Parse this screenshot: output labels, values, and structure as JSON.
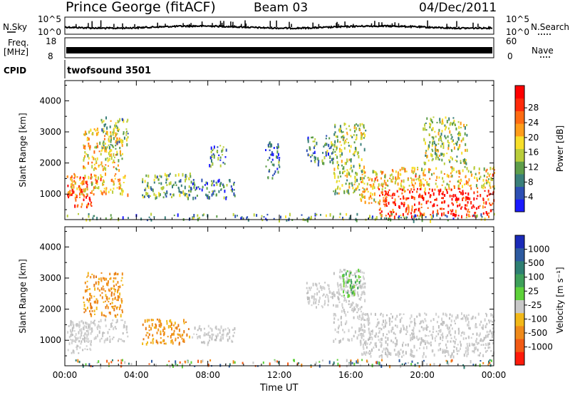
{
  "header": {
    "station": "Prince George (fitACF)",
    "beam": "Beam 03",
    "date": "04/Dec/2011"
  },
  "noise_panel": {
    "left_label": "N.Sky",
    "right_label": "N.Search",
    "left_ticks": [
      "10^5",
      "10^0"
    ],
    "right_ticks": [
      "10^5",
      "10^0"
    ]
  },
  "freq_panel": {
    "left_label_line1": "Freq.",
    "left_label_line2": "[MHz]",
    "right_label": "Nave",
    "left_ticks": [
      "18",
      "8"
    ],
    "right_ticks": [
      "60",
      "0"
    ]
  },
  "cpid_panel": {
    "label": "CPID",
    "value": "twofsound 3501"
  },
  "chart_data": [
    {
      "type": "heatmap",
      "parameter": "power",
      "xlabel": "",
      "ylabel": "Slant Range [km]",
      "x_range_hours_ut": [
        0,
        24
      ],
      "ylim": [
        180,
        4650
      ],
      "y_ticks": [
        1000,
        2000,
        3000,
        4000
      ],
      "colorbar": {
        "label": "Power [dB]",
        "ticks": [
          "4",
          "8",
          "12",
          "16",
          "20",
          "24",
          "28"
        ],
        "colors": [
          "#1a1aff",
          "#2d4fb4",
          "#3a7f7a",
          "#5e9e4a",
          "#b9cd3a",
          "#f7df2a",
          "#ff9d1a",
          "#ff6b12",
          "#ff2a0a",
          "#ff0000"
        ]
      },
      "echo_regions": [
        {
          "start_h": 0.1,
          "end_h": 1.5,
          "range_km": [
            600,
            1600
          ],
          "level": 0.8
        },
        {
          "start_h": 0.3,
          "end_h": 3.5,
          "range_km": [
            1000,
            1700
          ],
          "level": 0.62
        },
        {
          "start_h": 1.0,
          "end_h": 3.2,
          "range_km": [
            1800,
            3200
          ],
          "level": 0.55
        },
        {
          "start_h": 2.0,
          "end_h": 3.5,
          "range_km": [
            2500,
            3500
          ],
          "level": 0.4
        },
        {
          "start_h": 4.3,
          "end_h": 7.0,
          "range_km": [
            900,
            1700
          ],
          "level": 0.35
        },
        {
          "start_h": 7.0,
          "end_h": 9.5,
          "range_km": [
            900,
            1500
          ],
          "level": 0.22
        },
        {
          "start_h": 8.0,
          "end_h": 9.0,
          "range_km": [
            1900,
            2600
          ],
          "level": 0.25
        },
        {
          "start_h": 11.2,
          "end_h": 12.0,
          "range_km": [
            1500,
            2700
          ],
          "level": 0.18
        },
        {
          "start_h": 13.5,
          "end_h": 15.0,
          "range_km": [
            2000,
            2900
          ],
          "level": 0.3
        },
        {
          "start_h": 15.0,
          "end_h": 16.8,
          "range_km": [
            1000,
            3300
          ],
          "level": 0.45
        },
        {
          "start_h": 16.5,
          "end_h": 18.0,
          "range_km": [
            700,
            1800
          ],
          "level": 0.6
        },
        {
          "start_h": 18.0,
          "end_h": 24.0,
          "range_km": [
            1200,
            1900
          ],
          "level": 0.58
        },
        {
          "start_h": 17.5,
          "end_h": 24.0,
          "range_km": [
            300,
            1200
          ],
          "level": 0.88
        },
        {
          "start_h": 20.0,
          "end_h": 22.5,
          "range_km": [
            2000,
            3500
          ],
          "level": 0.45
        },
        {
          "start_h": 0.0,
          "end_h": 24.0,
          "range_km": [
            180,
            400
          ],
          "level": 0.3
        }
      ]
    },
    {
      "type": "heatmap",
      "parameter": "velocity",
      "xlabel": "Time UT",
      "ylabel": "Slant Range [km]",
      "x_range_hours_ut": [
        0,
        24
      ],
      "x_ticks": [
        "00:00",
        "04:00",
        "08:00",
        "12:00",
        "16:00",
        "20:00",
        "00:00"
      ],
      "ylim": [
        180,
        4650
      ],
      "y_ticks": [
        1000,
        2000,
        3000,
        4000
      ],
      "colorbar": {
        "label": "Velocity [m s⁻¹]",
        "ticks": [
          "1000",
          "500",
          "100",
          "25",
          "-25",
          "-100",
          "-500",
          "-1000"
        ],
        "colors": [
          "#1a2ab8",
          "#2d5aa0",
          "#2e7f72",
          "#3ea05a",
          "#5ed13a",
          "#c8c8c8",
          "#f2b818",
          "#ef8a1a",
          "#f25a14",
          "#ff1a0a"
        ]
      },
      "echo_regions": [
        {
          "start_h": 0.1,
          "end_h": 1.5,
          "range_km": [
            600,
            1600
          ],
          "velocity_class": "gray"
        },
        {
          "start_h": 0.3,
          "end_h": 3.5,
          "range_km": [
            1000,
            1700
          ],
          "velocity_class": "gray"
        },
        {
          "start_h": 1.0,
          "end_h": 3.2,
          "range_km": [
            1800,
            3200
          ],
          "velocity_class": "orange"
        },
        {
          "start_h": 4.3,
          "end_h": 7.0,
          "range_km": [
            900,
            1700
          ],
          "velocity_class": "orange"
        },
        {
          "start_h": 7.0,
          "end_h": 9.5,
          "range_km": [
            900,
            1500
          ],
          "velocity_class": "gray"
        },
        {
          "start_h": 13.5,
          "end_h": 15.0,
          "range_km": [
            2000,
            2900
          ],
          "velocity_class": "gray"
        },
        {
          "start_h": 15.0,
          "end_h": 16.8,
          "range_km": [
            1000,
            3300
          ],
          "velocity_class": "gray"
        },
        {
          "start_h": 16.5,
          "end_h": 24.0,
          "range_km": [
            500,
            1900
          ],
          "velocity_class": "gray"
        },
        {
          "start_h": 15.5,
          "end_h": 16.5,
          "range_km": [
            2400,
            3300
          ],
          "velocity_class": "green"
        },
        {
          "start_h": 0.0,
          "end_h": 24.0,
          "range_km": [
            180,
            400
          ],
          "velocity_class": "mixed"
        }
      ]
    }
  ]
}
